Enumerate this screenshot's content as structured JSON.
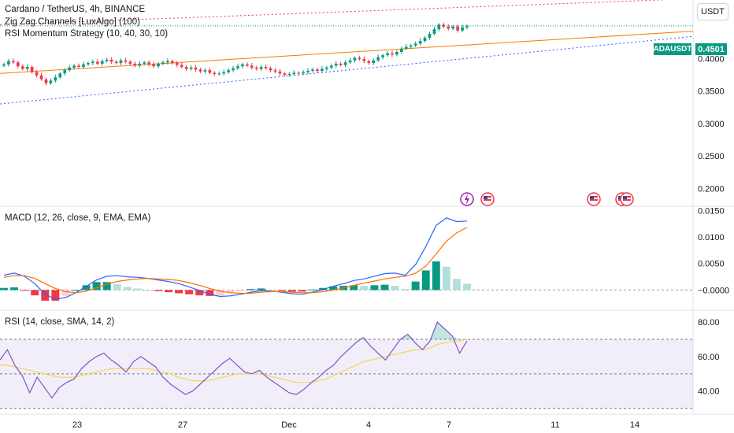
{
  "symbol": {
    "title": "Cardano / TetherUS, 4h, BINANCE",
    "ticker": "ADAUSDT",
    "last_price": "0.4501",
    "currency_button": "USDT"
  },
  "indicators": {
    "zigzag": "Zig Zag Channels [LuxAlgo] (100)",
    "rsi_strategy": "RSI Momentum Strategy (10, 40, 30, 10)",
    "macd_label": "MACD (12, 26, close, 9, EMA, EMA)",
    "rsi_label": "RSI (14, close, SMA, 14, 2)"
  },
  "colors": {
    "up": "#089981",
    "down": "#f23645",
    "macd_line": "#2962ff",
    "signal_line": "#ff6d00",
    "rsi_line": "#7e57c2",
    "rsi_ma": "#f7d44c",
    "channel_upper": "#f23645",
    "channel_mid": "#f57c00",
    "channel_lower": "#2962ff"
  },
  "chart_data": [
    {
      "type": "candlestick",
      "title": "Cardano / TetherUS, 4h, BINANCE",
      "ylim": [
        0.175,
        0.49
      ],
      "y_ticks": [
        "0.4000",
        "0.3500",
        "0.3000",
        "0.2500",
        "0.2000"
      ],
      "x_tick_labels": [
        "23",
        "27",
        "Dec",
        "4",
        "7",
        "11",
        "14"
      ],
      "last_price": 0.4501,
      "close_series": [
        0.391,
        0.396,
        0.394,
        0.388,
        0.384,
        0.387,
        0.379,
        0.374,
        0.368,
        0.362,
        0.366,
        0.371,
        0.377,
        0.382,
        0.386,
        0.389,
        0.387,
        0.391,
        0.393,
        0.395,
        0.392,
        0.396,
        0.398,
        0.395,
        0.393,
        0.397,
        0.395,
        0.392,
        0.389,
        0.392,
        0.394,
        0.391,
        0.388,
        0.392,
        0.394,
        0.396,
        0.393,
        0.39,
        0.387,
        0.384,
        0.386,
        0.383,
        0.38,
        0.382,
        0.378,
        0.376,
        0.377,
        0.379,
        0.382,
        0.385,
        0.388,
        0.391,
        0.389,
        0.386,
        0.384,
        0.387,
        0.385,
        0.382,
        0.38,
        0.377,
        0.375,
        0.376,
        0.378,
        0.377,
        0.379,
        0.381,
        0.383,
        0.381,
        0.384,
        0.386,
        0.389,
        0.392,
        0.39,
        0.394,
        0.397,
        0.401,
        0.399,
        0.396,
        0.393,
        0.397,
        0.402,
        0.405,
        0.408,
        0.406,
        0.41,
        0.415,
        0.418,
        0.42,
        0.423,
        0.427,
        0.432,
        0.438,
        0.445,
        0.452,
        0.449,
        0.446,
        0.449,
        0.443,
        0.448,
        0.4501
      ]
    },
    {
      "type": "line",
      "title": "MACD (12, 26, close, 9, EMA, EMA)",
      "ylim": [
        -0.0035,
        0.0155
      ],
      "y_ticks": [
        "0.0150",
        "0.0100",
        "0.0050",
        "−0.0000"
      ],
      "series": [
        {
          "name": "MACD",
          "values": [
            0.0028,
            0.0032,
            0.0026,
            0.0012,
            -0.0008,
            -0.0017,
            -0.0014,
            -0.0005,
            0.0007,
            0.0019,
            0.0026,
            0.0027,
            0.0025,
            0.0024,
            0.0022,
            0.0019,
            0.0016,
            0.0012,
            0.0006,
            -0.0001,
            -0.0008,
            -0.0012,
            -0.0011,
            -0.0008,
            -0.0004,
            -0.0001,
            -0.0002,
            -0.0004,
            -0.0007,
            -0.0008,
            -0.0004,
            0.0001,
            0.0007,
            0.0012,
            0.0018,
            0.0021,
            0.0026,
            0.0031,
            0.0032,
            0.0028,
            0.0048,
            0.0082,
            0.0122,
            0.0136,
            0.0129,
            0.013
          ]
        },
        {
          "name": "Signal",
          "values": [
            0.0024,
            0.0027,
            0.0027,
            0.0022,
            0.0012,
            0.0003,
            -0.0003,
            -0.0005,
            -0.0002,
            0.0004,
            0.0011,
            0.0016,
            0.0019,
            0.0021,
            0.0022,
            0.0021,
            0.002,
            0.0018,
            0.0014,
            0.0009,
            0.0003,
            -0.0002,
            -0.0005,
            -0.0006,
            -0.0006,
            -0.0004,
            -0.0003,
            -0.0003,
            -0.0004,
            -0.0005,
            -0.0005,
            -0.0003,
            0.0,
            0.0004,
            0.0009,
            0.0013,
            0.0017,
            0.0021,
            0.0024,
            0.0026,
            0.0032,
            0.0045,
            0.0068,
            0.0092,
            0.0108,
            0.0118
          ]
        },
        {
          "name": "Histogram",
          "values": [
            0.0004,
            0.0005,
            -0.0001,
            -0.001,
            -0.002,
            -0.002,
            -0.0011,
            0.0,
            0.0009,
            0.0015,
            0.0015,
            0.0011,
            0.0006,
            0.0003,
            0.0,
            -0.0002,
            -0.0004,
            -0.0006,
            -0.0008,
            -0.001,
            -0.0011,
            -0.001,
            -0.0006,
            -0.0002,
            0.0002,
            0.0003,
            0.0001,
            -0.0001,
            -0.0003,
            -0.0003,
            0.0001,
            0.0004,
            0.0007,
            0.0008,
            0.0009,
            0.0008,
            0.0009,
            0.001,
            0.0008,
            0.0002,
            0.0016,
            0.0037,
            0.0054,
            0.0044,
            0.0021,
            0.0012
          ]
        }
      ]
    },
    {
      "type": "line",
      "title": "RSI (14, close, SMA, 14, 2)",
      "ylim": [
        28,
        86
      ],
      "y_ticks": [
        "80.00",
        "60.00",
        "40.00"
      ],
      "bands": [
        70,
        50,
        30
      ],
      "series": [
        {
          "name": "RSI",
          "values": [
            58,
            64,
            55,
            49,
            39,
            48,
            42,
            36,
            42,
            45,
            47,
            53,
            57,
            60,
            62,
            58,
            55,
            51,
            57,
            60,
            57,
            54,
            48,
            44,
            41,
            38,
            40,
            44,
            48,
            52,
            56,
            59,
            55,
            51,
            50,
            52,
            48,
            45,
            42,
            39,
            38,
            41,
            45,
            48,
            52,
            55,
            60,
            64,
            68,
            71,
            66,
            62,
            58,
            64,
            70,
            73,
            68,
            64,
            69,
            80,
            76,
            72,
            62,
            69
          ]
        },
        {
          "name": "RSI-based MA",
          "values": [
            55,
            55,
            54,
            53,
            52,
            51,
            50,
            49,
            48,
            48,
            48,
            49,
            50,
            51,
            52,
            53,
            53,
            53,
            53,
            53,
            53,
            52,
            51,
            50,
            48,
            47,
            46,
            46,
            46,
            47,
            48,
            49,
            50,
            50,
            50,
            50,
            49,
            48,
            47,
            46,
            45,
            45,
            45,
            46,
            47,
            49,
            51,
            53,
            55,
            57,
            58,
            59,
            60,
            61,
            62,
            63,
            64,
            64,
            65,
            67,
            68,
            69,
            69,
            70
          ]
        }
      ]
    }
  ]
}
